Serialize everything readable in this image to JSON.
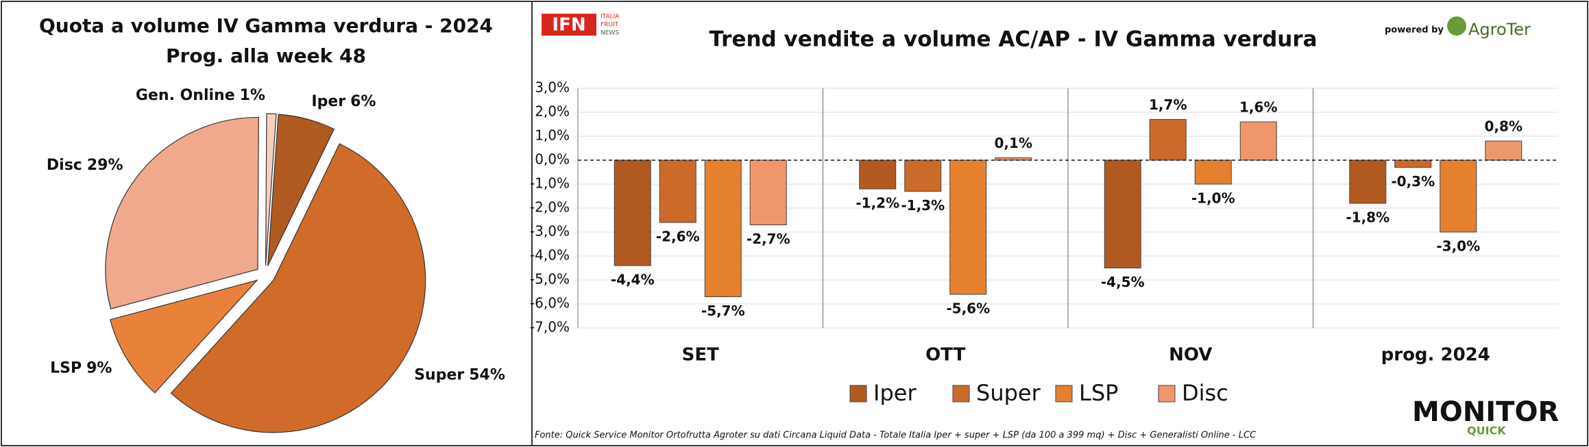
{
  "chart_data": [
    {
      "type": "pie",
      "title": "Quota a volume IV Gamma verdura - 2024 Prog. alla week 48",
      "categories": [
        "Iper",
        "Super",
        "LSP",
        "Disc",
        "Gen. Online"
      ],
      "values": [
        6,
        54,
        9,
        29,
        1
      ],
      "value_labels": [
        "6%",
        "54%",
        "9%",
        "29%",
        "1%"
      ],
      "colors": [
        "#b05a22",
        "#d06b2a",
        "#e8823a",
        "#f0a98c",
        "#f7cfc0"
      ]
    },
    {
      "type": "bar",
      "title": "Trend vendite a volume AC/AP - IV Gamma verdura",
      "categories": [
        "SET",
        "OTT",
        "NOV",
        "prog. 2024"
      ],
      "series": [
        {
          "name": "Iper",
          "color": "#b05a22",
          "values": [
            -4.4,
            -1.2,
            -4.5,
            -1.8
          ],
          "value_labels": [
            "-4,4%",
            "-1,2%",
            "-4,5%",
            "-1,8%"
          ]
        },
        {
          "name": "Super",
          "color": "#cc6a2a",
          "values": [
            -2.6,
            -1.3,
            1.7,
            -0.3
          ],
          "value_labels": [
            "-2,6%",
            "-1,3%",
            "1,7%",
            "-0,3%"
          ]
        },
        {
          "name": "LSP",
          "color": "#e5802f",
          "values": [
            -5.7,
            -5.6,
            -1.0,
            -3.0
          ],
          "value_labels": [
            "-5,7%",
            "-5,6%",
            "-1,0%",
            "-3,0%"
          ]
        },
        {
          "name": "Disc",
          "color": "#f0966c",
          "values": [
            -2.7,
            0.1,
            1.6,
            0.8
          ],
          "value_labels": [
            "-2,7%",
            "0,1%",
            "1,6%",
            "0,8%"
          ]
        }
      ],
      "ylim": [
        -7,
        3
      ],
      "yticks": [
        {
          "value": -7,
          "label": "-7,0%"
        },
        {
          "value": -6,
          "label": "-6,0%"
        },
        {
          "value": -5,
          "label": "-5,0%"
        },
        {
          "value": -4,
          "label": "-4,0%"
        },
        {
          "value": -3,
          "label": "-3,0%"
        },
        {
          "value": -2,
          "label": "-2,0%"
        },
        {
          "value": -1,
          "label": "-1,0%"
        },
        {
          "value": 0,
          "label": "0,0%"
        },
        {
          "value": 1,
          "label": "1,0%"
        },
        {
          "value": 2,
          "label": "2,0%"
        },
        {
          "value": 3,
          "label": "3,0%"
        }
      ],
      "grid": true
    }
  ],
  "logos": {
    "ifn": "IFN",
    "ifn_sub": [
      "ITALIA",
      "FRUIT",
      "NEWS"
    ],
    "powered_by": "powered by",
    "agroter": "AgroTer",
    "monitor": "MONITOR",
    "quick": "QUICK"
  },
  "source": "Fonte: Quick Service Monitor Ortofrutta Agroter su dati Circana Liquid Data - Totale Italia Iper + super + LSP (da 100 a 399 mq) + Disc + Generalisti Online - LCC"
}
